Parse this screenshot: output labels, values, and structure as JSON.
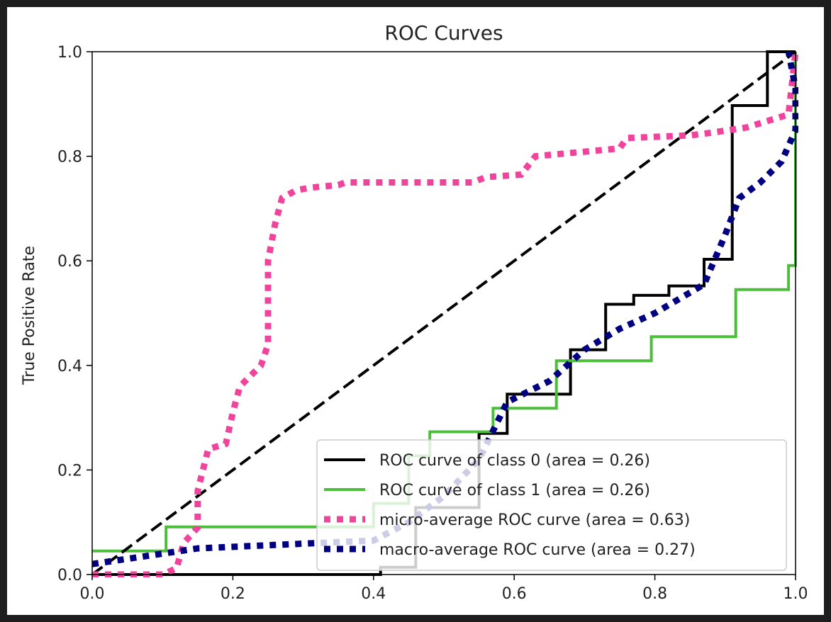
{
  "chart_data": {
    "type": "line",
    "title": "ROC Curves",
    "xlabel": "",
    "ylabel": "True Positive Rate",
    "xlim": [
      0,
      1
    ],
    "ylim": [
      0,
      1
    ],
    "xticks": [
      "0.0",
      "0.2",
      "0.4",
      "0.6",
      "0.8",
      "1.0"
    ],
    "yticks": [
      "0.0",
      "0.2",
      "0.4",
      "0.6",
      "0.8",
      "1.0"
    ],
    "grid": false,
    "legend_position": "lower-right",
    "series": [
      {
        "name": "ROC curve of class 0 (area = 0.26)",
        "color": "#000000",
        "style": "solid",
        "points": [
          [
            0,
            0
          ],
          [
            0.41,
            0
          ],
          [
            0.41,
            0.014
          ],
          [
            0.46,
            0.014
          ],
          [
            0.46,
            0.128
          ],
          [
            0.55,
            0.128
          ],
          [
            0.55,
            0.27
          ],
          [
            0.59,
            0.27
          ],
          [
            0.59,
            0.345
          ],
          [
            0.68,
            0.345
          ],
          [
            0.68,
            0.43
          ],
          [
            0.73,
            0.43
          ],
          [
            0.73,
            0.517
          ],
          [
            0.77,
            0.517
          ],
          [
            0.77,
            0.534
          ],
          [
            0.82,
            0.534
          ],
          [
            0.82,
            0.552
          ],
          [
            0.87,
            0.552
          ],
          [
            0.87,
            0.603
          ],
          [
            0.91,
            0.603
          ],
          [
            0.91,
            0.897
          ],
          [
            0.96,
            0.897
          ],
          [
            0.96,
            1.0
          ],
          [
            1.0,
            1.0
          ]
        ]
      },
      {
        "name": "ROC curve of class 1 (area = 0.26)",
        "color": "#4dbe3c",
        "style": "solid",
        "points": [
          [
            0,
            0.045
          ],
          [
            0.105,
            0.045
          ],
          [
            0.105,
            0.091
          ],
          [
            0.4,
            0.091
          ],
          [
            0.4,
            0.136
          ],
          [
            0.45,
            0.136
          ],
          [
            0.45,
            0.227
          ],
          [
            0.48,
            0.227
          ],
          [
            0.48,
            0.273
          ],
          [
            0.57,
            0.273
          ],
          [
            0.57,
            0.318
          ],
          [
            0.66,
            0.318
          ],
          [
            0.66,
            0.409
          ],
          [
            0.795,
            0.409
          ],
          [
            0.795,
            0.455
          ],
          [
            0.915,
            0.455
          ],
          [
            0.915,
            0.545
          ],
          [
            0.99,
            0.545
          ],
          [
            0.99,
            0.591
          ],
          [
            1.0,
            0.591
          ],
          [
            1.0,
            1.0
          ]
        ]
      },
      {
        "name": "micro-average ROC curve (area = 0.63)",
        "color": "#f0449c",
        "style": "dotted",
        "points": [
          [
            0,
            0
          ],
          [
            0.1,
            0
          ],
          [
            0.12,
            0.012
          ],
          [
            0.13,
            0.06
          ],
          [
            0.15,
            0.09
          ],
          [
            0.15,
            0.16
          ],
          [
            0.165,
            0.24
          ],
          [
            0.19,
            0.25
          ],
          [
            0.2,
            0.31
          ],
          [
            0.21,
            0.36
          ],
          [
            0.225,
            0.38
          ],
          [
            0.24,
            0.4
          ],
          [
            0.25,
            0.44
          ],
          [
            0.25,
            0.6
          ],
          [
            0.26,
            0.67
          ],
          [
            0.27,
            0.72
          ],
          [
            0.29,
            0.735
          ],
          [
            0.31,
            0.74
          ],
          [
            0.35,
            0.745
          ],
          [
            0.36,
            0.75
          ],
          [
            0.54,
            0.75
          ],
          [
            0.56,
            0.76
          ],
          [
            0.61,
            0.765
          ],
          [
            0.63,
            0.8
          ],
          [
            0.75,
            0.815
          ],
          [
            0.76,
            0.835
          ],
          [
            0.85,
            0.84
          ],
          [
            0.88,
            0.845
          ],
          [
            0.93,
            0.855
          ],
          [
            0.99,
            0.88
          ],
          [
            1.0,
            1.0
          ]
        ]
      },
      {
        "name": "macro-average ROC curve (area = 0.27)",
        "color": "#000080",
        "style": "dotted",
        "points": [
          [
            0,
            0.02
          ],
          [
            0.1,
            0.04
          ],
          [
            0.15,
            0.05
          ],
          [
            0.4,
            0.065
          ],
          [
            0.45,
            0.1
          ],
          [
            0.5,
            0.15
          ],
          [
            0.55,
            0.22
          ],
          [
            0.59,
            0.33
          ],
          [
            0.65,
            0.37
          ],
          [
            0.7,
            0.43
          ],
          [
            0.75,
            0.47
          ],
          [
            0.8,
            0.5
          ],
          [
            0.87,
            0.555
          ],
          [
            0.9,
            0.65
          ],
          [
            0.92,
            0.72
          ],
          [
            0.95,
            0.75
          ],
          [
            0.98,
            0.79
          ],
          [
            1.0,
            0.85
          ],
          [
            1.0,
            0.93
          ],
          [
            0.99,
            1.0
          ]
        ]
      },
      {
        "name": "",
        "color": "#000000",
        "style": "dashed",
        "points": [
          [
            0,
            0
          ],
          [
            1,
            1
          ]
        ]
      }
    ]
  }
}
